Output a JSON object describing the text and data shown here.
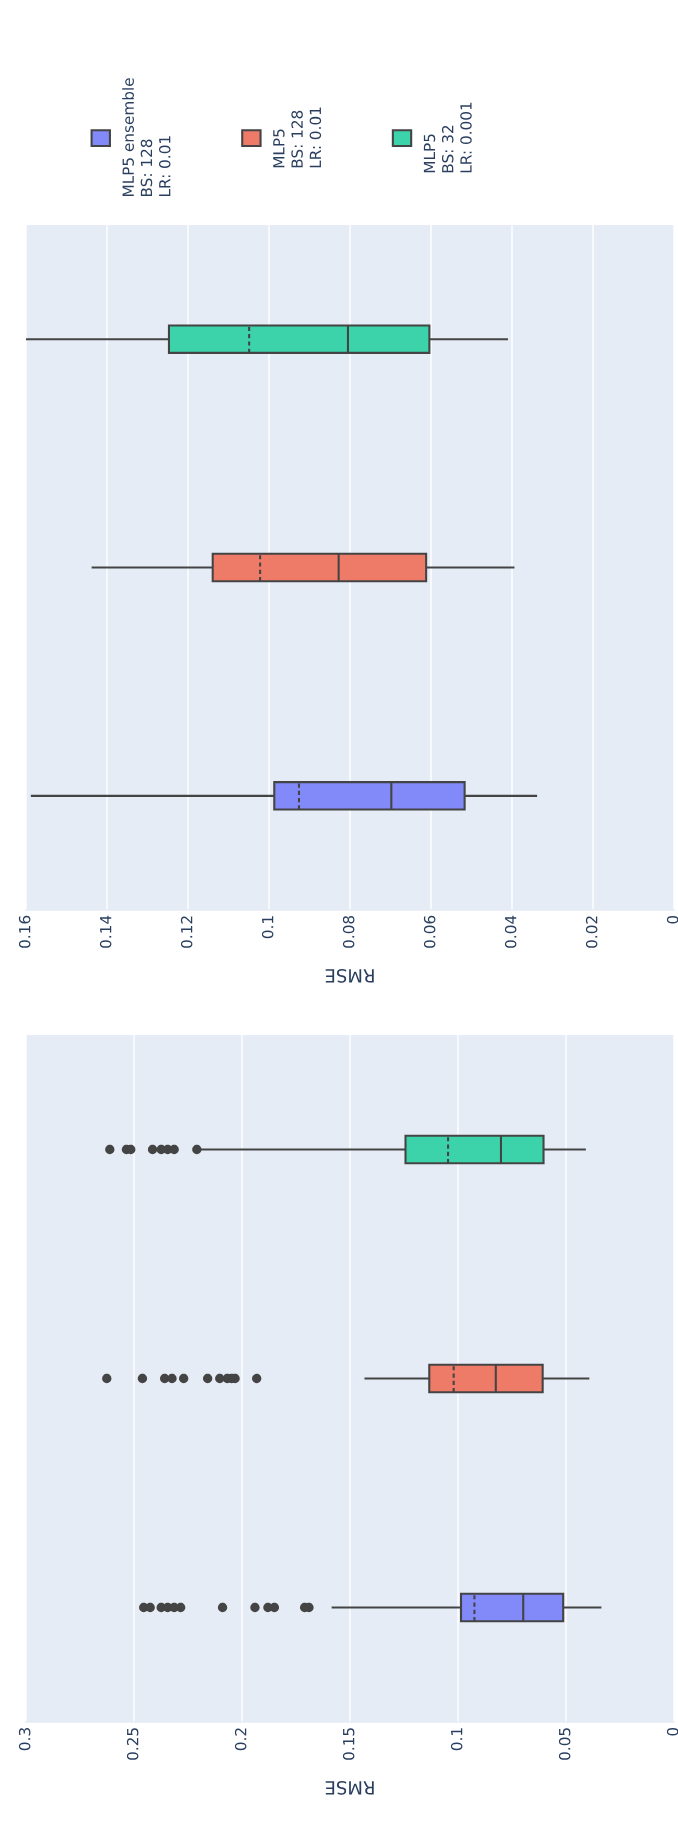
{
  "chart_data": [
    {
      "type": "box",
      "orientation": "horizontal",
      "xlabel": "RMSE",
      "categories": [
        null,
        null,
        null
      ],
      "xlim": [
        0.16,
        0
      ],
      "xticks": [
        0.16,
        0.14,
        0.12,
        0.1,
        0.08,
        0.06,
        0.04,
        0.02,
        0
      ],
      "grid": "x",
      "legend": "top",
      "series": [
        {
          "name": "MLP5\nBS: 32\nLR: 0.001",
          "color": "#3cd3aa",
          "boxes": [
            {
              "low": 0.041,
              "q1": 0.0604,
              "median": 0.0805,
              "q3": 0.1247,
              "high": null,
              "mean": 0.1049
            },
            null,
            null
          ]
        },
        {
          "name": "MLP5\nBS: 128\nLR: 0.01",
          "color": "#ee7a68",
          "boxes": [
            null,
            {
              "low": 0.0394,
              "q1": 0.0612,
              "median": 0.0828,
              "q3": 0.1139,
              "high": 0.1438,
              "mean": 0.1022
            },
            null
          ]
        },
        {
          "name": "MLP5 ensemble\nBS: 128\nLR: 0.01",
          "color": "#8289f8",
          "boxes": [
            null,
            null,
            {
              "low": 0.0338,
              "q1": 0.0517,
              "median": 0.0698,
              "q3": 0.0987,
              "high": 0.1588,
              "mean": 0.0926
            }
          ]
        }
      ]
    },
    {
      "type": "box",
      "orientation": "horizontal",
      "xlabel": "RMSE",
      "categories": [
        null,
        null,
        null
      ],
      "xlim": [
        0.3,
        0
      ],
      "xticks": [
        0.3,
        0.25,
        0.2,
        0.15,
        0.1,
        0.05,
        0
      ],
      "grid": "x",
      "series": [
        {
          "color": "#3cd3aa",
          "boxes": [
            {
              "low": 0.0408,
              "q1": 0.0604,
              "median": 0.0801,
              "q3": 0.1243,
              "high": 0.2203,
              "mean": 0.1046,
              "outliers": [
                0.2612,
                0.2535,
                0.2515,
                0.2414,
                0.2374,
                0.2344,
                0.2314,
                0.2209
              ]
            },
            null,
            null
          ]
        },
        {
          "color": "#ee7a68",
          "boxes": [
            null,
            {
              "low": 0.0392,
              "q1": 0.0608,
              "median": 0.0825,
              "q3": 0.1133,
              "high": 0.1433,
              "mean": 0.102,
              "outliers": [
                0.2626,
                0.2461,
                0.2358,
                0.2324,
                0.227,
                0.2159,
                0.2103,
                0.2068,
                0.2048,
                0.2032,
                0.1932
              ]
            },
            null
          ]
        },
        {
          "color": "#8289f8",
          "boxes": [
            null,
            null,
            {
              "low": 0.0336,
              "q1": 0.0513,
              "median": 0.0698,
              "q3": 0.0986,
              "high": 0.1585,
              "mean": 0.0924,
              "outliers": [
                0.2455,
                0.2425,
                0.2374,
                0.2344,
                0.2314,
                0.2284,
                0.209,
                0.194,
                0.188,
                0.185,
                0.171,
                0.169
              ]
            }
          ]
        }
      ]
    }
  ]
}
